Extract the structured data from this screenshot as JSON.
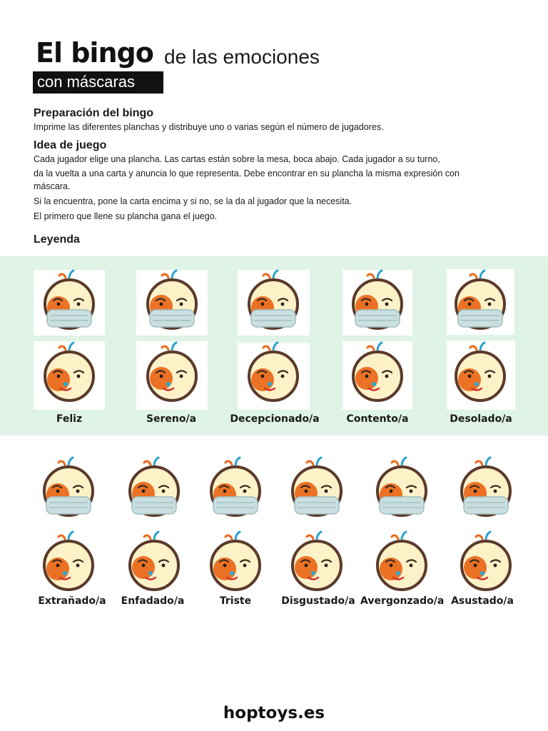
{
  "header": {
    "title_bold": "El bingo",
    "title_rest": "de las emociones",
    "subtitle": "con máscaras"
  },
  "sections": {
    "prep_title": "Preparación del bingo",
    "prep_text": "Imprime las diferentes planchas y distribuye uno o varias según el número de jugadores.",
    "idea_title": "Idea de juego",
    "idea_lines": [
      "Cada jugador elige una plancha. Las cartas están sobre la mesa, boca abajo. Cada jugador a su turno,",
      "da la vuelta a una carta y anuncia lo que representa. Debe encontrar en su plancha la misma expresión con",
      "máscara.",
      "Si la encuentra, pone la carta encima y si no, se la da al jugador que la necesita.",
      "El primero que llene su plancha gana el juego."
    ],
    "legend_title": "Leyenda"
  },
  "legend_labels": [
    "Feliz",
    "Sereno/a",
    "Decepcionado/a",
    "Contento/a",
    "Desolado/a"
  ],
  "bottom_labels": [
    "Extrañado/a",
    "Enfadado/a",
    "Triste",
    "Disgustado/a",
    "Avergonzado/a",
    "Asustado/a"
  ],
  "colors": {
    "band": "#dff3e6",
    "face": "#fdf1c8",
    "outline": "#5a3a2a",
    "patch": "#ea6a1c",
    "mask": "#c9dfe0",
    "nose": "#27a9d6",
    "sprout": "#2aa4cf"
  },
  "footer": {
    "brand": "hoptoys.es"
  }
}
